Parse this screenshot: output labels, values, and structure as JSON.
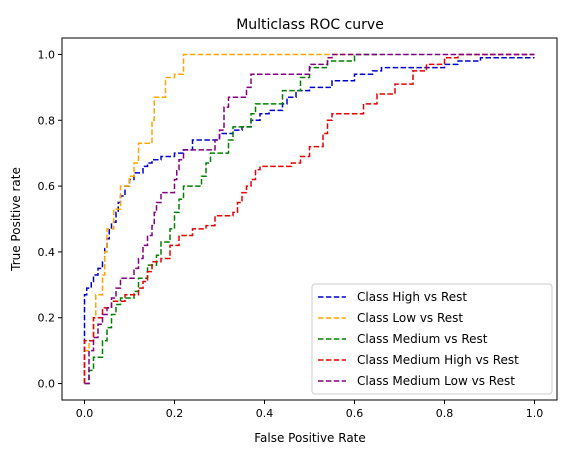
{
  "chart_data": {
    "type": "line",
    "title": "Multiclass ROC curve",
    "xlabel": "False Positive Rate",
    "ylabel": "True Positive rate",
    "xlim": [
      -0.05,
      1.05
    ],
    "ylim": [
      -0.05,
      1.05
    ],
    "xticks": [
      "0.0",
      "0.2",
      "0.4",
      "0.6",
      "0.8",
      "1.0"
    ],
    "yticks": [
      "0.0",
      "0.2",
      "0.4",
      "0.6",
      "0.8",
      "1.0"
    ],
    "grid": false,
    "legend_position": "lower-right",
    "line_style": "dashed",
    "series": [
      {
        "name": "Class High vs Rest",
        "color": "#0000cc",
        "points": [
          [
            0.0,
            0.0
          ],
          [
            0.0,
            0.27
          ],
          [
            0.005,
            0.27
          ],
          [
            0.005,
            0.29
          ],
          [
            0.015,
            0.29
          ],
          [
            0.015,
            0.31
          ],
          [
            0.02,
            0.31
          ],
          [
            0.02,
            0.33
          ],
          [
            0.03,
            0.33
          ],
          [
            0.03,
            0.35
          ],
          [
            0.04,
            0.35
          ],
          [
            0.04,
            0.37
          ],
          [
            0.045,
            0.37
          ],
          [
            0.045,
            0.41
          ],
          [
            0.05,
            0.41
          ],
          [
            0.05,
            0.44
          ],
          [
            0.055,
            0.44
          ],
          [
            0.055,
            0.47
          ],
          [
            0.06,
            0.47
          ],
          [
            0.06,
            0.49
          ],
          [
            0.07,
            0.49
          ],
          [
            0.07,
            0.52
          ],
          [
            0.075,
            0.52
          ],
          [
            0.075,
            0.55
          ],
          [
            0.08,
            0.55
          ],
          [
            0.08,
            0.57
          ],
          [
            0.09,
            0.57
          ],
          [
            0.09,
            0.6
          ],
          [
            0.1,
            0.6
          ],
          [
            0.1,
            0.62
          ],
          [
            0.11,
            0.62
          ],
          [
            0.11,
            0.64
          ],
          [
            0.13,
            0.64
          ],
          [
            0.13,
            0.66
          ],
          [
            0.14,
            0.66
          ],
          [
            0.14,
            0.67
          ],
          [
            0.15,
            0.67
          ],
          [
            0.15,
            0.68
          ],
          [
            0.17,
            0.68
          ],
          [
            0.17,
            0.69
          ],
          [
            0.2,
            0.69
          ],
          [
            0.2,
            0.7
          ],
          [
            0.22,
            0.7
          ],
          [
            0.22,
            0.71
          ],
          [
            0.24,
            0.71
          ],
          [
            0.24,
            0.74
          ],
          [
            0.3,
            0.74
          ],
          [
            0.3,
            0.76
          ],
          [
            0.33,
            0.76
          ],
          [
            0.33,
            0.77
          ],
          [
            0.35,
            0.77
          ],
          [
            0.35,
            0.78
          ],
          [
            0.37,
            0.78
          ],
          [
            0.37,
            0.8
          ],
          [
            0.39,
            0.8
          ],
          [
            0.39,
            0.82
          ],
          [
            0.41,
            0.82
          ],
          [
            0.41,
            0.83
          ],
          [
            0.44,
            0.83
          ],
          [
            0.44,
            0.85
          ],
          [
            0.45,
            0.85
          ],
          [
            0.45,
            0.87
          ],
          [
            0.47,
            0.87
          ],
          [
            0.47,
            0.89
          ],
          [
            0.5,
            0.89
          ],
          [
            0.5,
            0.9
          ],
          [
            0.55,
            0.9
          ],
          [
            0.55,
            0.92
          ],
          [
            0.6,
            0.92
          ],
          [
            0.6,
            0.94
          ],
          [
            0.64,
            0.94
          ],
          [
            0.64,
            0.95
          ],
          [
            0.66,
            0.95
          ],
          [
            0.66,
            0.96
          ],
          [
            0.8,
            0.96
          ],
          [
            0.8,
            0.97
          ],
          [
            0.83,
            0.97
          ],
          [
            0.83,
            0.98
          ],
          [
            0.88,
            0.98
          ],
          [
            0.88,
            0.99
          ],
          [
            1.0,
            0.99
          ]
        ]
      },
      {
        "name": "Class Low vs Rest",
        "color": "#ffa500",
        "points": [
          [
            0.0,
            0.0
          ],
          [
            0.0,
            0.1
          ],
          [
            0.01,
            0.1
          ],
          [
            0.01,
            0.13
          ],
          [
            0.02,
            0.13
          ],
          [
            0.02,
            0.2
          ],
          [
            0.025,
            0.2
          ],
          [
            0.025,
            0.27
          ],
          [
            0.04,
            0.27
          ],
          [
            0.04,
            0.33
          ],
          [
            0.045,
            0.33
          ],
          [
            0.045,
            0.4
          ],
          [
            0.05,
            0.4
          ],
          [
            0.05,
            0.47
          ],
          [
            0.065,
            0.47
          ],
          [
            0.065,
            0.53
          ],
          [
            0.08,
            0.53
          ],
          [
            0.08,
            0.6
          ],
          [
            0.1,
            0.6
          ],
          [
            0.1,
            0.63
          ],
          [
            0.11,
            0.63
          ],
          [
            0.11,
            0.67
          ],
          [
            0.12,
            0.67
          ],
          [
            0.12,
            0.73
          ],
          [
            0.15,
            0.73
          ],
          [
            0.15,
            0.8
          ],
          [
            0.155,
            0.8
          ],
          [
            0.155,
            0.87
          ],
          [
            0.18,
            0.87
          ],
          [
            0.18,
            0.93
          ],
          [
            0.2,
            0.93
          ],
          [
            0.2,
            0.94
          ],
          [
            0.22,
            0.94
          ],
          [
            0.22,
            1.0
          ],
          [
            0.6,
            1.0
          ]
        ]
      },
      {
        "name": "Class Medium vs Rest",
        "color": "#008000",
        "points": [
          [
            0.0,
            0.0
          ],
          [
            0.01,
            0.0
          ],
          [
            0.01,
            0.04
          ],
          [
            0.02,
            0.04
          ],
          [
            0.02,
            0.08
          ],
          [
            0.04,
            0.08
          ],
          [
            0.04,
            0.13
          ],
          [
            0.05,
            0.13
          ],
          [
            0.05,
            0.17
          ],
          [
            0.06,
            0.17
          ],
          [
            0.06,
            0.21
          ],
          [
            0.07,
            0.21
          ],
          [
            0.07,
            0.24
          ],
          [
            0.08,
            0.24
          ],
          [
            0.08,
            0.26
          ],
          [
            0.11,
            0.26
          ],
          [
            0.11,
            0.28
          ],
          [
            0.12,
            0.28
          ],
          [
            0.12,
            0.32
          ],
          [
            0.14,
            0.32
          ],
          [
            0.14,
            0.36
          ],
          [
            0.16,
            0.36
          ],
          [
            0.16,
            0.39
          ],
          [
            0.17,
            0.39
          ],
          [
            0.17,
            0.43
          ],
          [
            0.19,
            0.43
          ],
          [
            0.19,
            0.47
          ],
          [
            0.2,
            0.47
          ],
          [
            0.2,
            0.52
          ],
          [
            0.21,
            0.52
          ],
          [
            0.21,
            0.56
          ],
          [
            0.22,
            0.56
          ],
          [
            0.22,
            0.6
          ],
          [
            0.26,
            0.6
          ],
          [
            0.26,
            0.63
          ],
          [
            0.27,
            0.63
          ],
          [
            0.27,
            0.67
          ],
          [
            0.28,
            0.67
          ],
          [
            0.28,
            0.7
          ],
          [
            0.32,
            0.7
          ],
          [
            0.32,
            0.74
          ],
          [
            0.33,
            0.74
          ],
          [
            0.33,
            0.78
          ],
          [
            0.37,
            0.78
          ],
          [
            0.37,
            0.82
          ],
          [
            0.38,
            0.82
          ],
          [
            0.38,
            0.85
          ],
          [
            0.44,
            0.85
          ],
          [
            0.44,
            0.89
          ],
          [
            0.48,
            0.89
          ],
          [
            0.48,
            0.93
          ],
          [
            0.5,
            0.93
          ],
          [
            0.5,
            0.96
          ],
          [
            0.54,
            0.96
          ],
          [
            0.54,
            0.98
          ],
          [
            0.6,
            0.98
          ],
          [
            0.6,
            1.0
          ],
          [
            0.65,
            1.0
          ]
        ]
      },
      {
        "name": "Class Medium High vs Rest",
        "color": "#e60000",
        "points": [
          [
            0.0,
            0.0
          ],
          [
            0.0,
            0.13
          ],
          [
            0.02,
            0.13
          ],
          [
            0.02,
            0.2
          ],
          [
            0.04,
            0.2
          ],
          [
            0.04,
            0.23
          ],
          [
            0.06,
            0.23
          ],
          [
            0.06,
            0.25
          ],
          [
            0.09,
            0.25
          ],
          [
            0.09,
            0.27
          ],
          [
            0.12,
            0.27
          ],
          [
            0.12,
            0.29
          ],
          [
            0.13,
            0.29
          ],
          [
            0.13,
            0.31
          ],
          [
            0.14,
            0.31
          ],
          [
            0.14,
            0.34
          ],
          [
            0.15,
            0.34
          ],
          [
            0.15,
            0.37
          ],
          [
            0.17,
            0.37
          ],
          [
            0.17,
            0.38
          ],
          [
            0.19,
            0.38
          ],
          [
            0.19,
            0.42
          ],
          [
            0.21,
            0.42
          ],
          [
            0.21,
            0.45
          ],
          [
            0.24,
            0.45
          ],
          [
            0.24,
            0.47
          ],
          [
            0.27,
            0.47
          ],
          [
            0.27,
            0.48
          ],
          [
            0.29,
            0.48
          ],
          [
            0.29,
            0.51
          ],
          [
            0.33,
            0.51
          ],
          [
            0.33,
            0.52
          ],
          [
            0.34,
            0.52
          ],
          [
            0.34,
            0.55
          ],
          [
            0.35,
            0.55
          ],
          [
            0.35,
            0.58
          ],
          [
            0.36,
            0.58
          ],
          [
            0.36,
            0.6
          ],
          [
            0.37,
            0.6
          ],
          [
            0.37,
            0.62
          ],
          [
            0.38,
            0.62
          ],
          [
            0.38,
            0.65
          ],
          [
            0.39,
            0.65
          ],
          [
            0.39,
            0.66
          ],
          [
            0.46,
            0.66
          ],
          [
            0.46,
            0.67
          ],
          [
            0.48,
            0.67
          ],
          [
            0.48,
            0.69
          ],
          [
            0.5,
            0.69
          ],
          [
            0.5,
            0.72
          ],
          [
            0.53,
            0.72
          ],
          [
            0.53,
            0.76
          ],
          [
            0.54,
            0.76
          ],
          [
            0.54,
            0.8
          ],
          [
            0.55,
            0.8
          ],
          [
            0.55,
            0.82
          ],
          [
            0.62,
            0.82
          ],
          [
            0.62,
            0.85
          ],
          [
            0.65,
            0.85
          ],
          [
            0.65,
            0.88
          ],
          [
            0.69,
            0.88
          ],
          [
            0.69,
            0.91
          ],
          [
            0.73,
            0.91
          ],
          [
            0.73,
            0.95
          ],
          [
            0.76,
            0.95
          ],
          [
            0.76,
            0.97
          ],
          [
            0.8,
            0.97
          ],
          [
            0.8,
            0.99
          ],
          [
            0.83,
            0.99
          ],
          [
            0.83,
            1.0
          ],
          [
            1.0,
            1.0
          ]
        ]
      },
      {
        "name": "Class Medium Low vs Rest",
        "color": "#800080",
        "points": [
          [
            0.0,
            0.0
          ],
          [
            0.01,
            0.0
          ],
          [
            0.01,
            0.1
          ],
          [
            0.02,
            0.1
          ],
          [
            0.02,
            0.14
          ],
          [
            0.03,
            0.14
          ],
          [
            0.03,
            0.18
          ],
          [
            0.04,
            0.18
          ],
          [
            0.04,
            0.21
          ],
          [
            0.05,
            0.21
          ],
          [
            0.05,
            0.23
          ],
          [
            0.06,
            0.23
          ],
          [
            0.06,
            0.26
          ],
          [
            0.07,
            0.26
          ],
          [
            0.07,
            0.29
          ],
          [
            0.08,
            0.29
          ],
          [
            0.08,
            0.32
          ],
          [
            0.11,
            0.32
          ],
          [
            0.11,
            0.35
          ],
          [
            0.12,
            0.35
          ],
          [
            0.12,
            0.38
          ],
          [
            0.13,
            0.38
          ],
          [
            0.13,
            0.42
          ],
          [
            0.14,
            0.42
          ],
          [
            0.14,
            0.45
          ],
          [
            0.15,
            0.45
          ],
          [
            0.15,
            0.48
          ],
          [
            0.155,
            0.48
          ],
          [
            0.155,
            0.52
          ],
          [
            0.16,
            0.52
          ],
          [
            0.16,
            0.55
          ],
          [
            0.17,
            0.55
          ],
          [
            0.17,
            0.58
          ],
          [
            0.2,
            0.58
          ],
          [
            0.2,
            0.62
          ],
          [
            0.205,
            0.62
          ],
          [
            0.205,
            0.65
          ],
          [
            0.21,
            0.65
          ],
          [
            0.21,
            0.68
          ],
          [
            0.22,
            0.68
          ],
          [
            0.22,
            0.71
          ],
          [
            0.29,
            0.71
          ],
          [
            0.29,
            0.74
          ],
          [
            0.3,
            0.74
          ],
          [
            0.3,
            0.77
          ],
          [
            0.31,
            0.77
          ],
          [
            0.31,
            0.81
          ],
          [
            0.31,
            0.84
          ],
          [
            0.32,
            0.84
          ],
          [
            0.32,
            0.87
          ],
          [
            0.36,
            0.87
          ],
          [
            0.36,
            0.9
          ],
          [
            0.37,
            0.9
          ],
          [
            0.37,
            0.94
          ],
          [
            0.5,
            0.94
          ],
          [
            0.5,
            0.97
          ],
          [
            0.54,
            0.97
          ],
          [
            0.54,
            0.99
          ],
          [
            0.55,
            0.99
          ],
          [
            0.55,
            1.0
          ],
          [
            1.0,
            1.0
          ]
        ]
      }
    ]
  }
}
